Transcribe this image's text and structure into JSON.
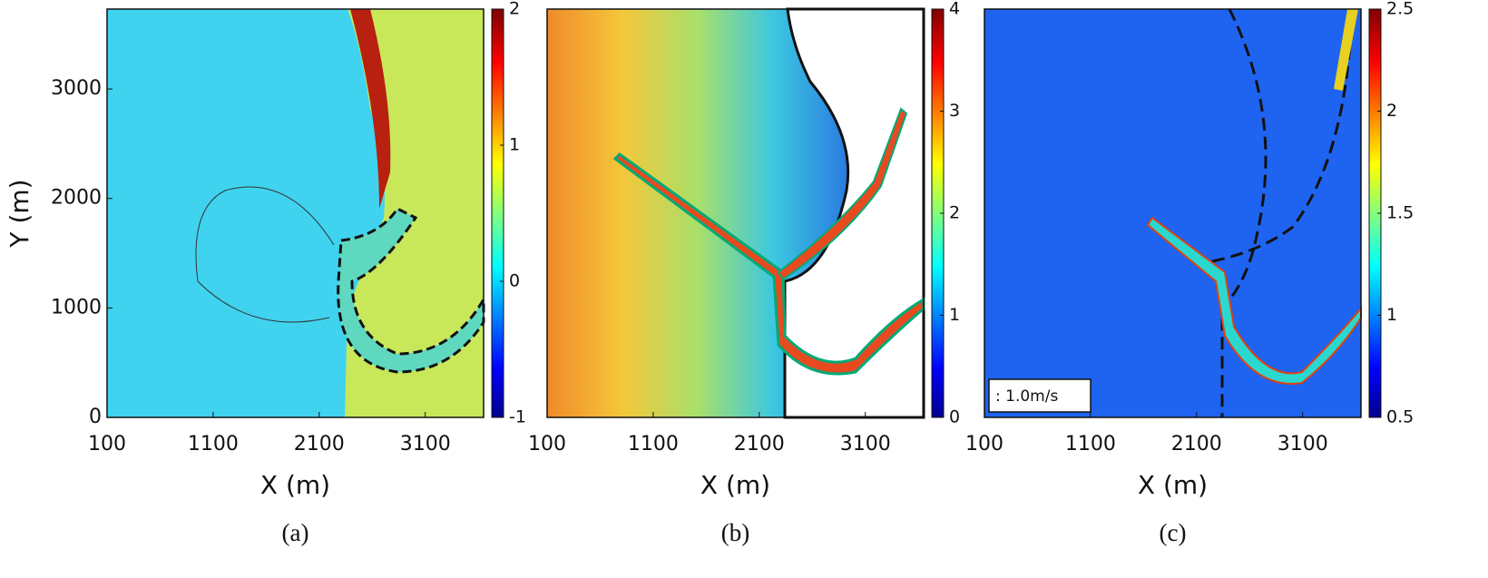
{
  "chart_data": [
    {
      "type": "heatmap",
      "xlabel": "X (m)",
      "ylabel": "Y (m)",
      "panel_label": "(a)",
      "xlim": [
        100,
        3650
      ],
      "ylim": [
        0,
        3730
      ],
      "xticks": [
        100,
        1100,
        2100,
        3100
      ],
      "yticks": [
        0,
        1000,
        2000,
        3000
      ],
      "clim": [
        -1,
        2
      ],
      "cticks": [
        -1,
        0,
        1,
        2
      ]
    },
    {
      "type": "heatmap",
      "xlabel": "X (m)",
      "panel_label": "(b)",
      "xlim": [
        100,
        3650
      ],
      "ylim": [
        0,
        3730
      ],
      "xticks": [
        100,
        1100,
        2100,
        3100
      ],
      "clim": [
        0,
        4
      ],
      "cticks": [
        0,
        1,
        2,
        3,
        4
      ]
    },
    {
      "type": "heatmap",
      "xlabel": "X (m)",
      "panel_label": "(c)",
      "annotation": ": 1.0m/s",
      "xlim": [
        100,
        3650
      ],
      "ylim": [
        0,
        3730
      ],
      "xticks": [
        100,
        1100,
        2100,
        3100
      ],
      "clim": [
        0.5,
        2.5
      ],
      "cticks": [
        0.5,
        1,
        1.5,
        2,
        2.5
      ]
    }
  ]
}
